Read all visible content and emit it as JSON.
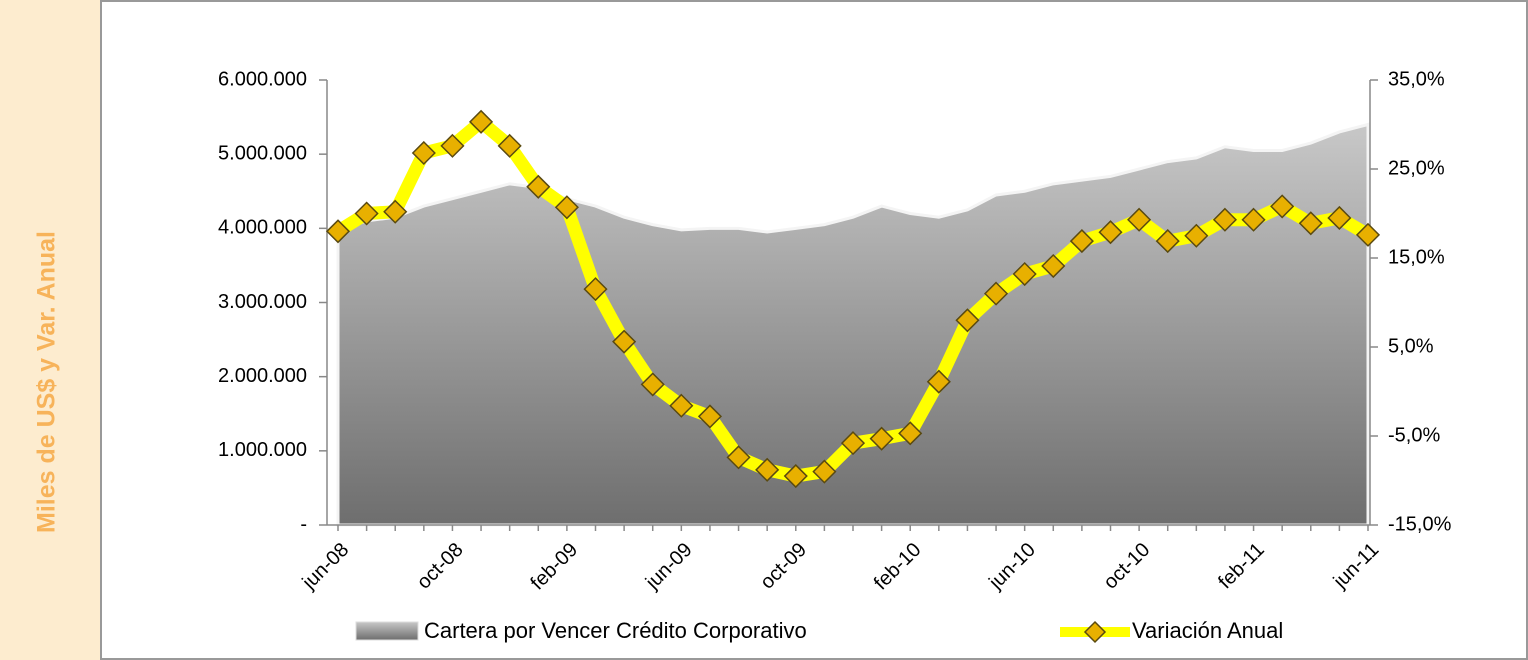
{
  "chart_data": {
    "type": "area-line",
    "ylabel": "Miles de US$ y Var. Anual",
    "categories": [
      "jun-08",
      null,
      null,
      null,
      "oct-08",
      null,
      null,
      null,
      "feb-09",
      null,
      null,
      null,
      "jun-09",
      null,
      null,
      null,
      "oct-09",
      null,
      null,
      null,
      "feb-10",
      null,
      null,
      null,
      "jun-10",
      null,
      null,
      null,
      "oct-10",
      null,
      null,
      null,
      "feb-11",
      null,
      null,
      null,
      "jun-11"
    ],
    "series": [
      {
        "name": "Cartera por Vencer Crédito Corporativo",
        "color": "#a0a0a0",
        "values": [
          3980000,
          4100000,
          4150000,
          4300000,
          4400000,
          4500000,
          4600000,
          4550000,
          4400000,
          4300000,
          4150000,
          4050000,
          3980000,
          4000000,
          4000000,
          3950000,
          4000000,
          4050000,
          4150000,
          4300000,
          4200000,
          4150000,
          4250000,
          4450000,
          4500000,
          4600000,
          4650000,
          4700000,
          4800000,
          4900000,
          4950000,
          5100000,
          5050000,
          5050000,
          5150000,
          5300000,
          5400000
        ]
      },
      {
        "name": "Variación Anual",
        "color": "#ffff00",
        "marker_color": "#e8b000",
        "axis": "y2",
        "values": [
          18,
          20,
          20.2,
          26.8,
          27.6,
          30.3,
          27.6,
          23,
          20.7,
          11.5,
          5.6,
          0.8,
          -1.6,
          -2.8,
          -7.4,
          -8.8,
          -9.5,
          -9,
          -5.8,
          -5.3,
          -4.7,
          1.1,
          8,
          11,
          13.2,
          14.1,
          16.9,
          17.9,
          19.3,
          16.9,
          17.5,
          19.3,
          19.3,
          20.8,
          18.9,
          19.5,
          17.6
        ]
      }
    ],
    "ylim": [
      0,
      6000000
    ],
    "yticks": [
      {
        "value": 0,
        "label": "-"
      },
      {
        "value": 1000000,
        "label": "1.000.000"
      },
      {
        "value": 2000000,
        "label": "2.000.000"
      },
      {
        "value": 3000000,
        "label": "3.000.000"
      },
      {
        "value": 4000000,
        "label": "4.000.000"
      },
      {
        "value": 5000000,
        "label": "5.000.000"
      },
      {
        "value": 6000000,
        "label": "6.000.000"
      }
    ],
    "y2lim": [
      -15,
      35
    ],
    "y2ticks": [
      {
        "value": -15,
        "label": "-15,0%"
      },
      {
        "value": -5,
        "label": "-5,0%"
      },
      {
        "value": 5,
        "label": "5,0%"
      },
      {
        "value": 15,
        "label": "15,0%"
      },
      {
        "value": 25,
        "label": "25,0%"
      },
      {
        "value": 35,
        "label": "35,0%"
      }
    ],
    "grid": false,
    "legend": "bottom"
  }
}
